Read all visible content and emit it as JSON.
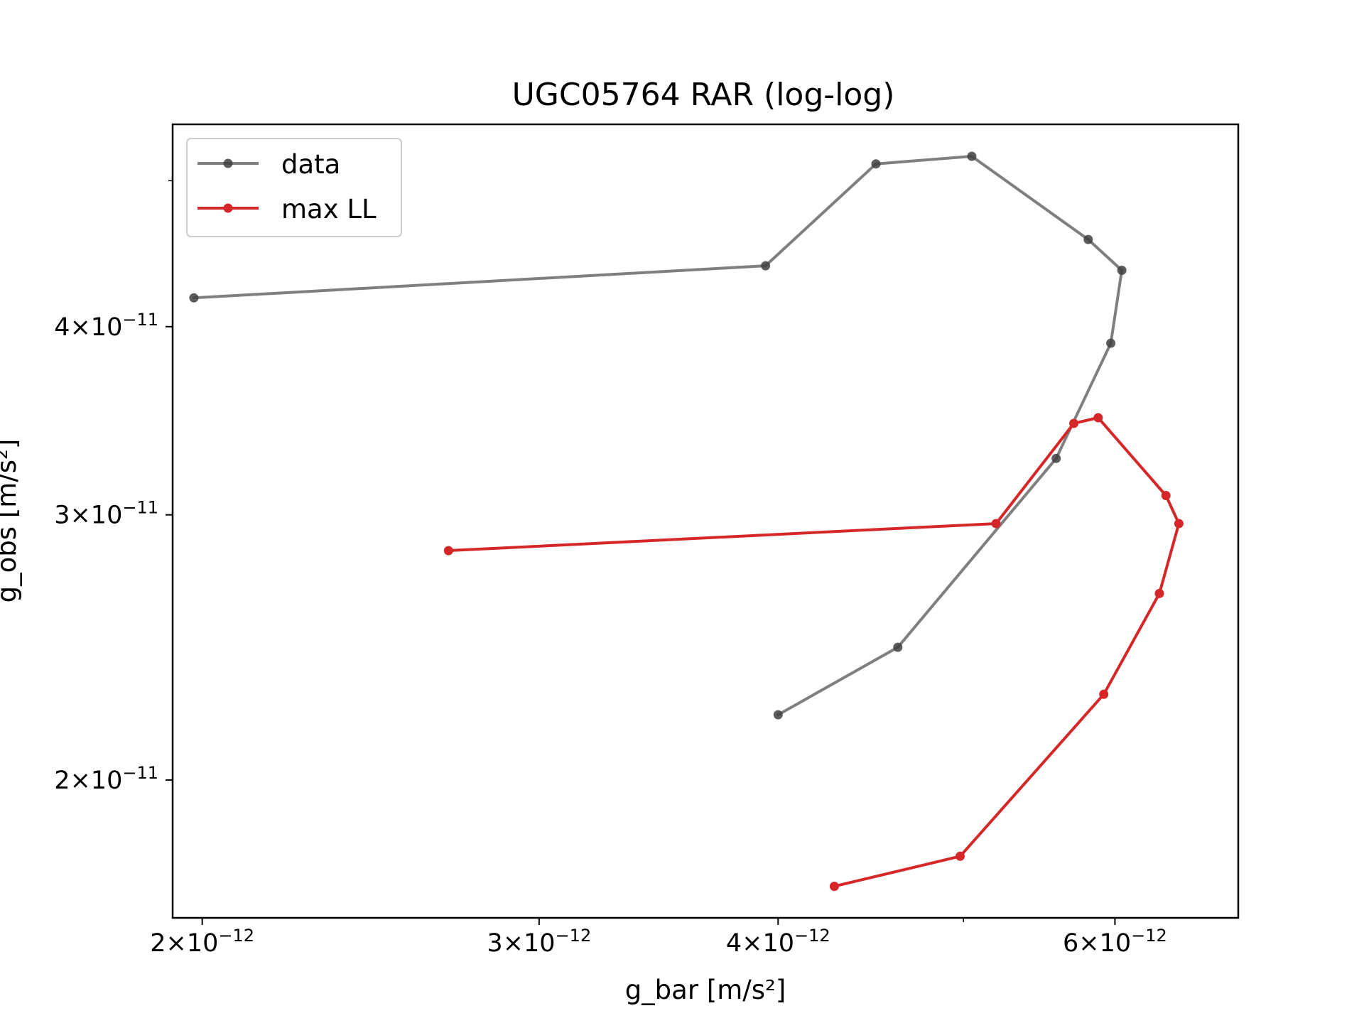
{
  "chart_data": {
    "type": "line",
    "title": "UGC05764 RAR (log-log)",
    "xlabel": "g_bar [m/s²]",
    "ylabel": "g_obs [m/s²]",
    "xscale": "log",
    "yscale": "log",
    "xlim": [
      1.93e-12,
      6.96e-12
    ],
    "ylim": [
      1.62e-11,
      5.45e-11
    ],
    "x_ticks": [
      {
        "value": 2e-12,
        "mantissa": "2",
        "exponent": "−12"
      },
      {
        "value": 3e-12,
        "mantissa": "3",
        "exponent": "−12"
      },
      {
        "value": 4e-12,
        "mantissa": "4",
        "exponent": "−12"
      },
      {
        "value": 6e-12,
        "mantissa": "6",
        "exponent": "−12"
      }
    ],
    "x_minor_ticks": [
      5e-12
    ],
    "y_ticks": [
      {
        "value": 2e-11,
        "mantissa": "2",
        "exponent": "−11"
      },
      {
        "value": 3e-11,
        "mantissa": "3",
        "exponent": "−11"
      },
      {
        "value": 4e-11,
        "mantissa": "4",
        "exponent": "−11"
      }
    ],
    "y_minor_ticks": [
      5e-11
    ],
    "legend_position": "top-left",
    "series": [
      {
        "name": "data",
        "color": "#7f7f7f",
        "marker_color": "#404040",
        "x": [
          4e-12,
          4.62e-12,
          5.59e-12,
          5.97e-12,
          6.05e-12,
          5.81e-12,
          5.05e-12,
          4.5e-12,
          3.94e-12,
          1.98e-12
        ],
        "y": [
          2.21e-11,
          2.45e-11,
          3.27e-11,
          3.9e-11,
          4.36e-11,
          4.57e-11,
          5.19e-11,
          5.13e-11,
          4.39e-11,
          4.18e-11
        ]
      },
      {
        "name": "max LL",
        "color": "#d62728",
        "marker_color": "#d62728",
        "x": [
          4.28e-12,
          4.98e-12,
          5.92e-12,
          6.33e-12,
          6.48e-12,
          6.38e-12,
          5.88e-12,
          5.71e-12,
          5.2e-12,
          2.69e-12
        ],
        "y": [
          1.7e-11,
          1.78e-11,
          2.28e-11,
          2.66e-11,
          2.96e-11,
          3.09e-11,
          3.48e-11,
          3.45e-11,
          2.96e-11,
          2.84e-11
        ]
      }
    ]
  }
}
